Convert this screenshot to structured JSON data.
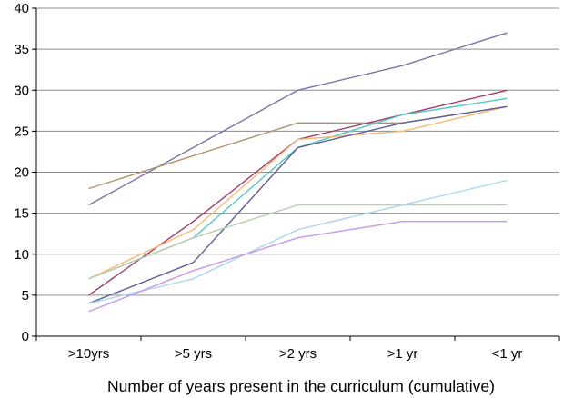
{
  "chart_data": {
    "type": "line",
    "title": "",
    "xlabel": "Number of years present in the curriculum  (cumulative)",
    "ylabel": "",
    "categories": [
      ">10yrs",
      ">5 yrs",
      ">2 yrs",
      ">1 yr",
      "<1 yr"
    ],
    "ylim": [
      0,
      40
    ],
    "yticks": [
      0,
      5,
      10,
      15,
      20,
      25,
      30,
      35,
      40
    ],
    "grid": true,
    "legend": "none",
    "series": [
      {
        "color": "#7b72ac",
        "values": [
          16,
          23,
          30,
          33,
          37
        ]
      },
      {
        "color": "#b0936c",
        "values": [
          18,
          22,
          26,
          26,
          28
        ]
      },
      {
        "color": "#a33a6a",
        "values": [
          5,
          14,
          24,
          27,
          30
        ]
      },
      {
        "color": "#4fc7c9",
        "values": [
          7,
          12,
          23,
          27,
          29
        ]
      },
      {
        "color": "#f9b877",
        "values": [
          7,
          13,
          24,
          25,
          28
        ]
      },
      {
        "color": "#5d5f97",
        "values": [
          4,
          9,
          23,
          26,
          28
        ]
      },
      {
        "color": "#b5cfae",
        "values": [
          7,
          12,
          16,
          16,
          16
        ]
      },
      {
        "color": "#a7d6f2",
        "values": [
          4,
          7,
          13,
          16,
          19
        ]
      },
      {
        "color": "#c697ec",
        "values": [
          3,
          8,
          12,
          14,
          14
        ]
      }
    ]
  }
}
